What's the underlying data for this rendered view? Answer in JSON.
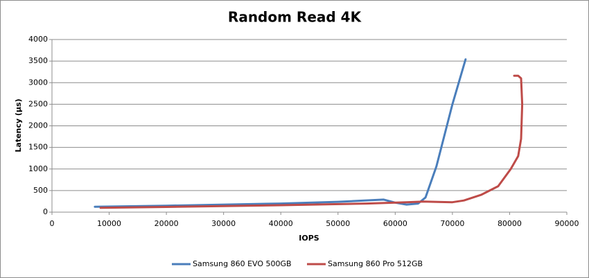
{
  "chart_data": {
    "type": "line",
    "title": "Random Read 4K",
    "x_label": "IOPS",
    "y_label": "Latency (µs)",
    "xlim": [
      0,
      90000
    ],
    "xticks": [
      0,
      10000,
      20000,
      30000,
      40000,
      50000,
      60000,
      70000,
      80000,
      90000
    ],
    "ylim": [
      0,
      4000
    ],
    "yticks": [
      0,
      500,
      1000,
      1500,
      2000,
      2500,
      3000,
      3500,
      4000
    ],
    "grid": true,
    "legend": "bottom",
    "series": [
      {
        "name": "Samsung 860 EVO 500GB",
        "color": "#4a7ebb",
        "x": [
          7500,
          20000,
          40000,
          50000,
          58000,
          60000,
          62000,
          64000,
          65300,
          67200,
          70000,
          72300
        ],
        "values": [
          125,
          150,
          200,
          240,
          290,
          220,
          175,
          200,
          340,
          1060,
          2500,
          3540
        ]
      },
      {
        "name": "Samsung 860 Pro 512GB",
        "color": "#be4b48",
        "x": [
          8500,
          20000,
          40000,
          55000,
          62000,
          65000,
          68000,
          70000,
          72000,
          75000,
          78000,
          80200,
          81500,
          82000,
          82200,
          82000,
          81500,
          80800
        ],
        "values": [
          100,
          120,
          160,
          200,
          230,
          245,
          235,
          230,
          270,
          400,
          600,
          1000,
          1300,
          1700,
          2500,
          3100,
          3160,
          3160
        ]
      }
    ]
  }
}
